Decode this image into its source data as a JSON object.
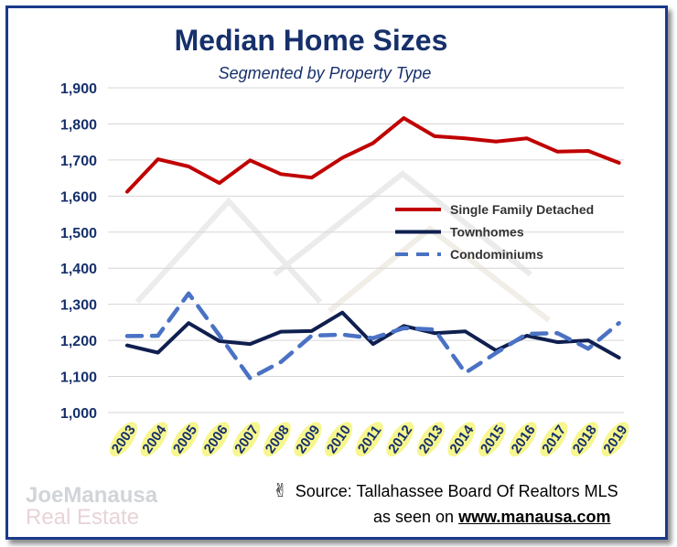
{
  "chart_data": {
    "type": "line",
    "title": "Median Home Sizes",
    "subtitle": "Segmented by Property Type",
    "categories": [
      "2003",
      "2004",
      "2005",
      "2006",
      "2007",
      "2008",
      "2009",
      "2010",
      "2011",
      "2012",
      "2013",
      "2014",
      "2015",
      "2016",
      "2017",
      "2018",
      "2019"
    ],
    "ylim": [
      1000,
      1900
    ],
    "yticks": [
      "1,900",
      "1,800",
      "1,700",
      "1,600",
      "1,500",
      "1,400",
      "1,300",
      "1,200",
      "1,100",
      "1,000"
    ],
    "grid": true,
    "legend_position": "right",
    "series": [
      {
        "name": "Single Family Detached",
        "color": "#c00000",
        "style": "solid",
        "values": [
          1612,
          1702,
          1682,
          1636,
          1699,
          1661,
          1651,
          1706,
          1747,
          1816,
          1766,
          1760,
          1751,
          1760,
          1723,
          1725,
          1692
        ]
      },
      {
        "name": "Townhomes",
        "color": "#0f1f4f",
        "style": "solid",
        "values": [
          1186,
          1166,
          1248,
          1198,
          1190,
          1224,
          1226,
          1277,
          1190,
          1240,
          1220,
          1225,
          1172,
          1213,
          1195,
          1200,
          1152
        ]
      },
      {
        "name": "Condominiums",
        "color": "#4a72c4",
        "style": "dashed",
        "values": [
          1212,
          1213,
          1330,
          1214,
          1095,
          1140,
          1213,
          1216,
          1206,
          1234,
          1230,
          1110,
          1165,
          1218,
          1220,
          1177,
          1248
        ]
      }
    ]
  },
  "footer": {
    "source": "Source: Tallahassee Board Of Realtors MLS",
    "seen_prefix": "as seen on",
    "url": "www.manausa.com",
    "hand_icon": "✌"
  },
  "logo": {
    "line1": "JoeManausa",
    "line2": "Real Estate"
  }
}
